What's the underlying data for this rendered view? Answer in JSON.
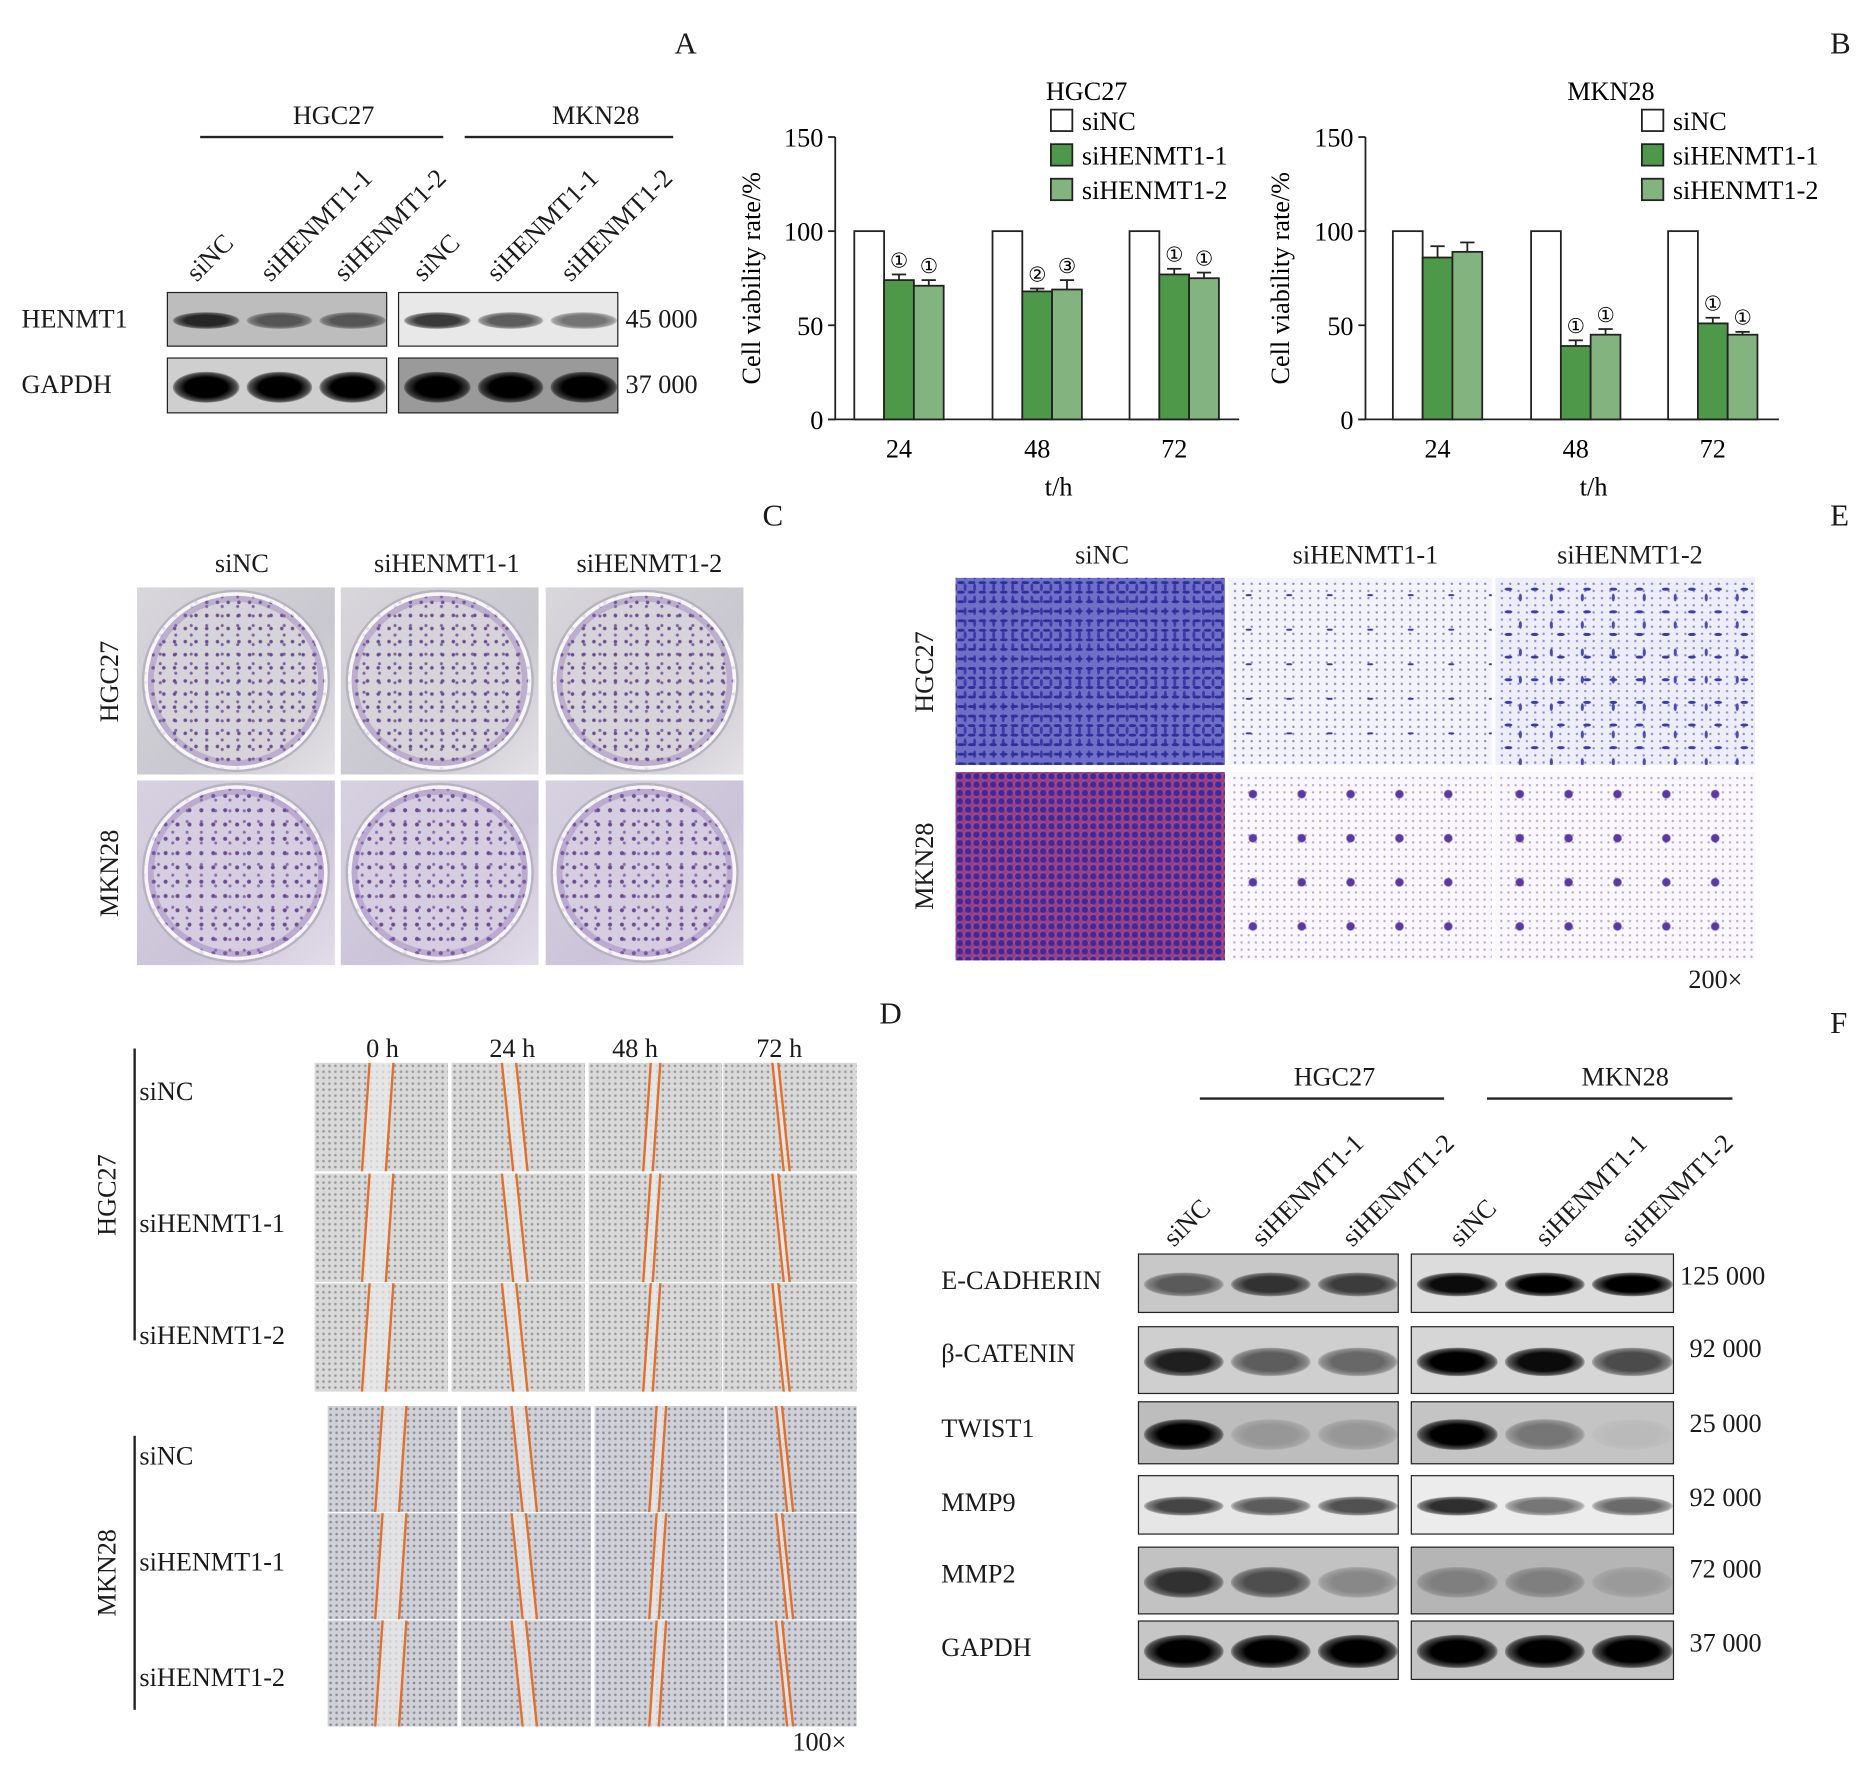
{
  "panel_letters": {
    "A": "A",
    "B": "B",
    "C": "C",
    "D": "D",
    "E": "E",
    "F": "F"
  },
  "groups": [
    "siNC",
    "siHENMT1-1",
    "siHENMT1-2"
  ],
  "cell_lines": [
    "HGC27",
    "MKN28"
  ],
  "panel_a": {
    "proteins": [
      {
        "name": "HENMT1",
        "mw": "45 000",
        "band_intensity": [
          [
            0.8,
            0.55,
            0.55
          ],
          [
            0.75,
            0.6,
            0.5
          ]
        ]
      },
      {
        "name": "GAPDH",
        "mw": "37 000",
        "band_intensity": [
          [
            1,
            1,
            1
          ],
          [
            1,
            1,
            1
          ]
        ]
      }
    ]
  },
  "chart_data": [
    {
      "type": "bar",
      "title": "HGC27",
      "categories": [
        "24",
        "48",
        "72"
      ],
      "series": [
        {
          "name": "siNC",
          "values": [
            100,
            100,
            100
          ],
          "errors": [
            0,
            0,
            0
          ],
          "annotations": [
            "",
            "",
            ""
          ],
          "color": "#ffffff"
        },
        {
          "name": "siHENMT1-1",
          "values": [
            74,
            68,
            77
          ],
          "errors": [
            3,
            1.5,
            3
          ],
          "annotations": [
            "①",
            "②",
            "①"
          ],
          "color": "#4e984a"
        },
        {
          "name": "siHENMT1-2",
          "values": [
            71,
            69,
            75
          ],
          "errors": [
            3,
            5,
            3
          ],
          "annotations": [
            "①",
            "③",
            "①"
          ],
          "color": "#83b47f"
        }
      ],
      "xlabel": "t/h",
      "ylabel": "Cell viability rate/%",
      "ylim": [
        0,
        150
      ],
      "yticks": [
        "0",
        "50",
        "100",
        "150"
      ],
      "grid": false,
      "legend": "top-right"
    },
    {
      "type": "bar",
      "title": "MKN28",
      "categories": [
        "24",
        "48",
        "72"
      ],
      "series": [
        {
          "name": "siNC",
          "values": [
            100,
            100,
            100
          ],
          "errors": [
            0,
            0,
            0
          ],
          "annotations": [
            "",
            "",
            ""
          ],
          "color": "#ffffff"
        },
        {
          "name": "siHENMT1-1",
          "values": [
            86,
            39,
            51
          ],
          "errors": [
            6,
            3,
            3
          ],
          "annotations": [
            "",
            "①",
            "①"
          ],
          "color": "#4e984a"
        },
        {
          "name": "siHENMT1-2",
          "values": [
            89,
            45,
            45
          ],
          "errors": [
            5,
            3,
            1.5
          ],
          "annotations": [
            "",
            "①",
            "①"
          ],
          "color": "#83b47f"
        }
      ],
      "xlabel": "t/h",
      "ylabel": "Cell viability rate/%",
      "ylim": [
        0,
        150
      ],
      "yticks": [
        "0",
        "50",
        "100",
        "150"
      ],
      "grid": false,
      "legend": "top-right"
    }
  ],
  "panel_d": {
    "timepoints": [
      "0 h",
      "24 h",
      "48 h",
      "72 h"
    ],
    "magnification": "100×"
  },
  "panel_e": {
    "magnification": "200×"
  },
  "panel_f": {
    "proteins": [
      {
        "name": "E-CADHERIN",
        "mw": "125 000",
        "band_intensity": [
          [
            0.55,
            0.75,
            0.7
          ],
          [
            0.95,
            1,
            1
          ]
        ]
      },
      {
        "name": "β-CATENIN",
        "mw": "92 000",
        "band_intensity": [
          [
            0.85,
            0.55,
            0.5
          ],
          [
            1,
            0.95,
            0.65
          ]
        ]
      },
      {
        "name": "TWIST1",
        "mw": "25 000",
        "band_intensity": [
          [
            1,
            0.2,
            0.2
          ],
          [
            1,
            0.4,
            0.05
          ]
        ]
      },
      {
        "name": "MMP9",
        "mw": "92 000",
        "band_intensity": [
          [
            0.7,
            0.6,
            0.65
          ],
          [
            0.8,
            0.5,
            0.55
          ]
        ]
      },
      {
        "name": "MMP2",
        "mw": "72 000",
        "band_intensity": [
          [
            0.75,
            0.6,
            0.3
          ],
          [
            0.3,
            0.3,
            0.15
          ]
        ]
      },
      {
        "name": "GAPDH",
        "mw": "37 000",
        "band_intensity": [
          [
            1,
            1,
            1
          ],
          [
            1,
            1,
            1
          ]
        ]
      }
    ]
  }
}
